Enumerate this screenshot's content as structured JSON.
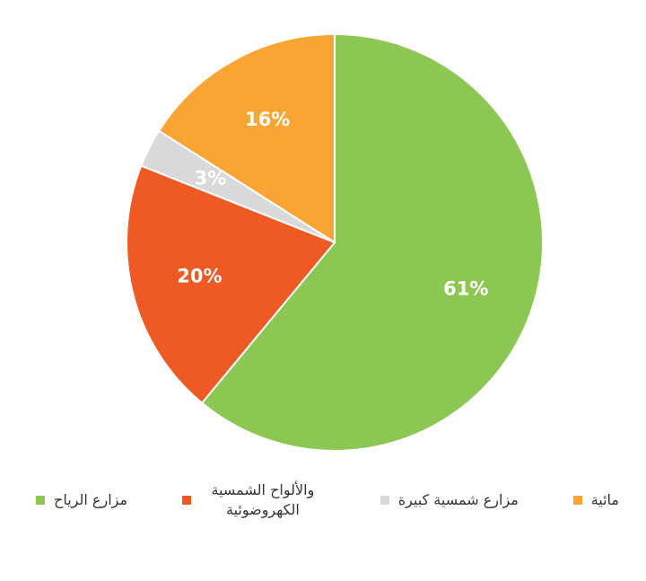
{
  "chart_data": {
    "type": "pie",
    "categories": [
      "مزارع الرياح",
      "والألواح الشمسية الكهروضوئية",
      "مزارع شمسية كبيرة",
      "مائية"
    ],
    "values": [
      61,
      20,
      3,
      16
    ],
    "value_labels": [
      "61%",
      "20%",
      "3%",
      "16%"
    ],
    "colors": [
      "#8dc753",
      "#ef5a24",
      "#d9d9d9",
      "#f9a533"
    ]
  }
}
